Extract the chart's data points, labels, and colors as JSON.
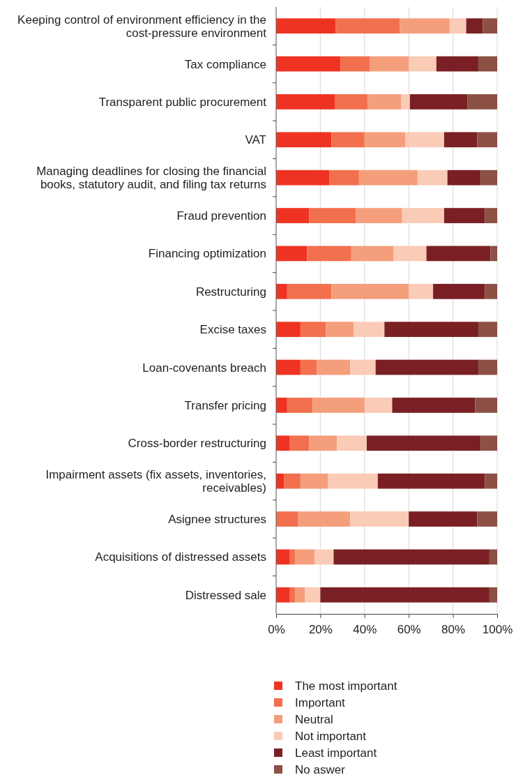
{
  "chart_data": {
    "type": "bar",
    "orientation": "horizontal",
    "stacked": true,
    "categories": [
      "Keeping control of environment efficiency in the cost-pressure environment",
      "Tax compliance",
      "Transparent public procurement",
      "VAT",
      "Managing deadlines for closing the financial books, statutory audit, and filing tax returns",
      "Fraud prevention",
      "Financing optimization",
      "Restructuring",
      "Excise taxes",
      "Loan-covenants breach",
      "Transfer pricing",
      "Cross-border restructuring",
      "Impairment assets (fix assets, inventories, receivables)",
      "Asignee structures",
      "Acquisitions of distressed assets",
      "Distressed sale"
    ],
    "series": [
      {
        "name": "The most important",
        "color": "#ef3323",
        "values": [
          27,
          29,
          26.5,
          25,
          24,
          15,
          14,
          5,
          11,
          11,
          5,
          6,
          3.5,
          0,
          6,
          6
        ]
      },
      {
        "name": "Important",
        "color": "#f2704e",
        "values": [
          29,
          13.5,
          15,
          15,
          13.5,
          21,
          20,
          20,
          11.5,
          7.5,
          11.5,
          9,
          7.5,
          10,
          2.5,
          2.5
        ]
      },
      {
        "name": "Neutral",
        "color": "#f59e7c",
        "values": [
          22.5,
          17.5,
          15,
          18.5,
          26.5,
          21,
          19,
          35,
          12.5,
          15,
          23.5,
          12.5,
          12.5,
          23.5,
          9,
          4.5
        ]
      },
      {
        "name": "Not important",
        "color": "#facbb6",
        "values": [
          7.5,
          12.5,
          4,
          17.5,
          13.5,
          19,
          15,
          11,
          14,
          11.5,
          12.5,
          13.5,
          22.5,
          26.5,
          8.5,
          7
        ]
      },
      {
        "name": "Least important",
        "color": "#7a2024",
        "values": [
          7.5,
          19,
          26,
          15,
          15,
          18.5,
          29,
          23.5,
          42.5,
          46.5,
          37.5,
          51.5,
          48.5,
          31,
          70.5,
          76.5
        ]
      },
      {
        "name": "No aswer",
        "color": "#8c5044",
        "values": [
          6.5,
          8.5,
          13.5,
          9,
          7.5,
          5.5,
          3,
          5.5,
          8.5,
          8.5,
          10,
          7.5,
          5.5,
          9,
          3.5,
          3.5
        ]
      }
    ],
    "xlim": [
      0,
      100
    ],
    "xticks": [
      {
        "value": 0,
        "label": "0%"
      },
      {
        "value": 20,
        "label": "20%"
      },
      {
        "value": 40,
        "label": "40%"
      },
      {
        "value": 60,
        "label": "60%"
      },
      {
        "value": 80,
        "label": "80%"
      },
      {
        "value": 100,
        "label": "100%"
      }
    ],
    "grid": "x",
    "legend": "bottom"
  }
}
